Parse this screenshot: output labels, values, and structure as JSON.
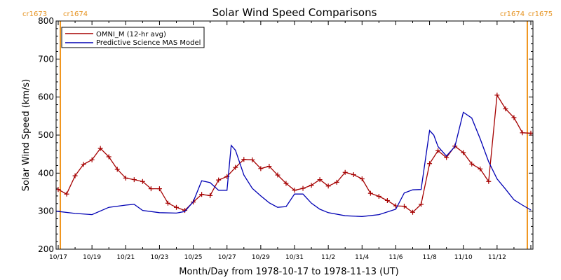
{
  "chart_data": {
    "type": "line",
    "title": "Solar Wind Speed Comparisons",
    "xlabel": "Month/Day from 1978-10-17 to 1978-11-13 (UT)",
    "ylabel": "Solar Wind Speed (km/s)",
    "xlim": [
      "1978-10-16 21:00",
      "1978-11-14 03:00"
    ],
    "ylim": [
      200,
      800
    ],
    "grid": false,
    "legend_position": "top-left",
    "x_tick_labels": [
      "10/17",
      "10/19",
      "10/21",
      "10/23",
      "10/25",
      "10/27",
      "10/29",
      "10/31",
      "11/2",
      "11/4",
      "11/6",
      "11/8",
      "11/10",
      "11/12"
    ],
    "y_tick_labels": [
      "200",
      "300",
      "400",
      "500",
      "600",
      "700",
      "800"
    ],
    "carrington_markers": [
      {
        "label_left": "cr1673",
        "label_right": "cr1674",
        "date": "1978-10-17 03:00"
      },
      {
        "label_left": "cr1674",
        "label_right": "cr1675",
        "date": "1978-11-13 19:00"
      }
    ],
    "carrington_color": "#f0961e",
    "series": [
      {
        "name": "OMNI_M (12-hr avg)",
        "color": "#a50000",
        "marker": "plus",
        "x": [
          "1978-10-17 00:00",
          "1978-10-17 12:00",
          "1978-10-18 00:00",
          "1978-10-18 12:00",
          "1978-10-19 00:00",
          "1978-10-19 12:00",
          "1978-10-20 00:00",
          "1978-10-20 12:00",
          "1978-10-21 00:00",
          "1978-10-21 12:00",
          "1978-10-22 00:00",
          "1978-10-22 12:00",
          "1978-10-23 00:00",
          "1978-10-23 12:00",
          "1978-10-24 00:00",
          "1978-10-24 12:00",
          "1978-10-25 00:00",
          "1978-10-25 12:00",
          "1978-10-26 00:00",
          "1978-10-26 12:00",
          "1978-10-27 00:00",
          "1978-10-27 12:00",
          "1978-10-28 00:00",
          "1978-10-28 12:00",
          "1978-10-29 00:00",
          "1978-10-29 12:00",
          "1978-10-30 00:00",
          "1978-10-30 12:00",
          "1978-10-31 00:00",
          "1978-10-31 12:00",
          "1978-11-01 00:00",
          "1978-11-01 12:00",
          "1978-11-02 00:00",
          "1978-11-02 12:00",
          "1978-11-03 00:00",
          "1978-11-03 12:00",
          "1978-11-04 00:00",
          "1978-11-04 12:00",
          "1978-11-05 00:00",
          "1978-11-05 12:00",
          "1978-11-06 00:00",
          "1978-11-06 12:00",
          "1978-11-07 00:00",
          "1978-11-07 12:00",
          "1978-11-08 00:00",
          "1978-11-08 12:00",
          "1978-11-09 00:00",
          "1978-11-09 12:00",
          "1978-11-10 00:00",
          "1978-11-10 12:00",
          "1978-11-11 00:00",
          "1978-11-11 12:00",
          "1978-11-12 00:00",
          "1978-11-12 12:00",
          "1978-11-13 00:00",
          "1978-11-13 12:00",
          "1978-11-14 00:00"
        ],
        "values": [
          357,
          345,
          393,
          423,
          435,
          465,
          443,
          410,
          387,
          383,
          378,
          359,
          359,
          321,
          310,
          302,
          324,
          344,
          341,
          382,
          391,
          415,
          436,
          435,
          412,
          418,
          395,
          373,
          355,
          360,
          368,
          383,
          366,
          376,
          402,
          396,
          385,
          347,
          339,
          328,
          314,
          313,
          297,
          318,
          425,
          459,
          441,
          471,
          454,
          424,
          411,
          378,
          605,
          569,
          546,
          506,
          505
        ]
      },
      {
        "name": "Predictive Science MAS Model",
        "color": "#0000b4",
        "marker": "none",
        "x": [
          "1978-10-16 21:00",
          "1978-10-18 00:00",
          "1978-10-19 00:00",
          "1978-10-20 00:00",
          "1978-10-21 00:00",
          "1978-10-21 12:00",
          "1978-10-22 00:00",
          "1978-10-23 00:00",
          "1978-10-24 00:00",
          "1978-10-24 12:00",
          "1978-10-25 00:00",
          "1978-10-25 12:00",
          "1978-10-26 00:00",
          "1978-10-26 12:00",
          "1978-10-27 00:00",
          "1978-10-27 06:00",
          "1978-10-27 12:00",
          "1978-10-28 00:00",
          "1978-10-28 12:00",
          "1978-10-29 00:00",
          "1978-10-29 12:00",
          "1978-10-30 00:00",
          "1978-10-30 12:00",
          "1978-10-31 00:00",
          "1978-10-31 12:00",
          "1978-11-01 00:00",
          "1978-11-01 12:00",
          "1978-11-02 00:00",
          "1978-11-03 00:00",
          "1978-11-04 00:00",
          "1978-11-05 00:00",
          "1978-11-06 00:00",
          "1978-11-06 12:00",
          "1978-11-07 00:00",
          "1978-11-07 12:00",
          "1978-11-08 00:00",
          "1978-11-08 06:00",
          "1978-11-08 12:00",
          "1978-11-09 00:00",
          "1978-11-09 12:00",
          "1978-11-10 00:00",
          "1978-11-10 12:00",
          "1978-11-11 00:00",
          "1978-11-11 12:00",
          "1978-11-12 00:00",
          "1978-11-12 12:00",
          "1978-11-13 00:00",
          "1978-11-13 12:00",
          "1978-11-14 00:00"
        ],
        "values": [
          300,
          294,
          291,
          310,
          316,
          318,
          302,
          296,
          295,
          299,
          325,
          380,
          375,
          355,
          355,
          473,
          460,
          395,
          360,
          340,
          322,
          310,
          312,
          345,
          345,
          321,
          305,
          296,
          288,
          286,
          291,
          305,
          348,
          356,
          357,
          512,
          500,
          470,
          445,
          470,
          560,
          545,
          490,
          430,
          385,
          358,
          330,
          316,
          303
        ]
      }
    ]
  }
}
